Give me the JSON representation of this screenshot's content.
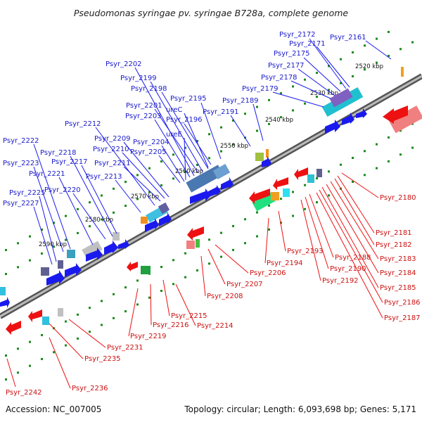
{
  "title": "Pseudomonas syringae pv. syringae B728a, complete genome",
  "accession": "Accession: NC_007005",
  "topology": "Topology: circular; Length: 6,093,698 bp; Genes: 5,171",
  "kbp_labels": [
    "2520 kbp",
    "2530 kbp",
    "2540 kbp",
    "2550 kbp",
    "2560 kbp",
    "2570 kbp",
    "2580 kbp",
    "2590 kbp"
  ],
  "forward_genes": [
    "Psyr_2161",
    "Psyr_2171",
    "Psyr_2172",
    "Psyr_2175",
    "Psyr_2177",
    "Psyr_2178",
    "Psyr_2179",
    "Psyr_2189",
    "Psyr_2191",
    "Psyr_2195",
    "Psyr_2196",
    "Psyr_2198",
    "Psyr_2199",
    "Psyr_2201",
    "Psyr_2202",
    "Psyr_2203",
    "Psyr_2204",
    "Psyr_2205",
    "Psyr_2209",
    "Psyr_2210",
    "Psyr_2211",
    "Psyr_2212",
    "Psyr_2213",
    "Psyr_2217",
    "Psyr_2218",
    "Psyr_2220",
    "Psyr_2221",
    "Psyr_2222",
    "Psyr_2223",
    "Psyr_2225",
    "Psyr_2227",
    "ureC",
    "ureE"
  ],
  "reverse_genes": [
    "Psyr_2180",
    "Psyr_2181",
    "Psyr_2182",
    "Psyr_2183",
    "Psyr_2184",
    "Psyr_2185",
    "Psyr_2186",
    "Psyr_2187",
    "Psyr_2188",
    "Psyr_2190",
    "Psyr_2192",
    "Psyr_2193",
    "Psyr_2194",
    "Psyr_2206",
    "Psyr_2207",
    "Psyr_2208",
    "Psyr_2214",
    "Psyr_2215",
    "Psyr_2216",
    "Psyr_2219",
    "Psyr_2231",
    "Psyr_2235",
    "Psyr_2236",
    "Psyr_2242"
  ],
  "colors": {
    "forward": "#1a1aee",
    "reverse": "#ee1111",
    "backbone": "#777777",
    "ticks": "#1a8a1a"
  }
}
